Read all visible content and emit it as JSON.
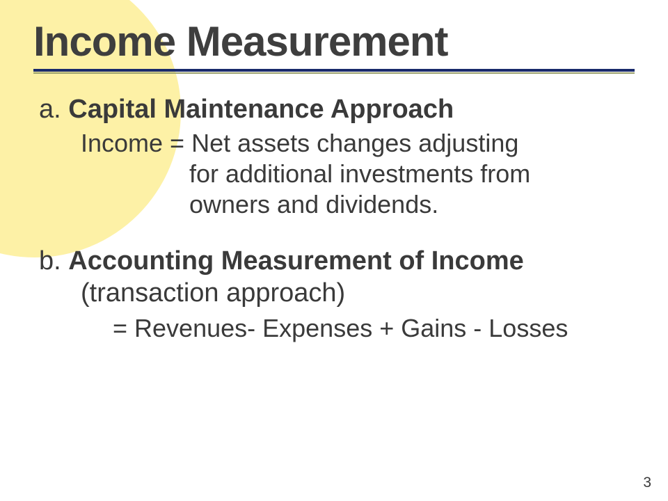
{
  "title": "Income Measurement",
  "title_fontsize": 60,
  "title_color": "#3e3e3e",
  "rule": {
    "top_color": "#1a2a6c",
    "bottom_color": "#9aa06a",
    "top_width": 4,
    "bottom_width": 2,
    "gap": 1
  },
  "bg_circle_color": "#fdf1a6",
  "body_color": "#3a3a3a",
  "sectionA": {
    "prefix": "a. ",
    "head": "Capital Maintenance Approach",
    "head_fontsize": 38,
    "body_fontsize": 36,
    "line1": "Income = Net assets changes adjusting",
    "line2": "for additional investments from",
    "line3": "owners and dividends."
  },
  "sectionB": {
    "prefix": "b. ",
    "head": "Accounting Measurement of Income",
    "sub": "(transaction approach)",
    "head_fontsize": 38,
    "body_fontsize": 36,
    "formula": "= Revenues- Expenses + Gains - Losses"
  },
  "page_number": "3",
  "page_number_fontsize": 21
}
